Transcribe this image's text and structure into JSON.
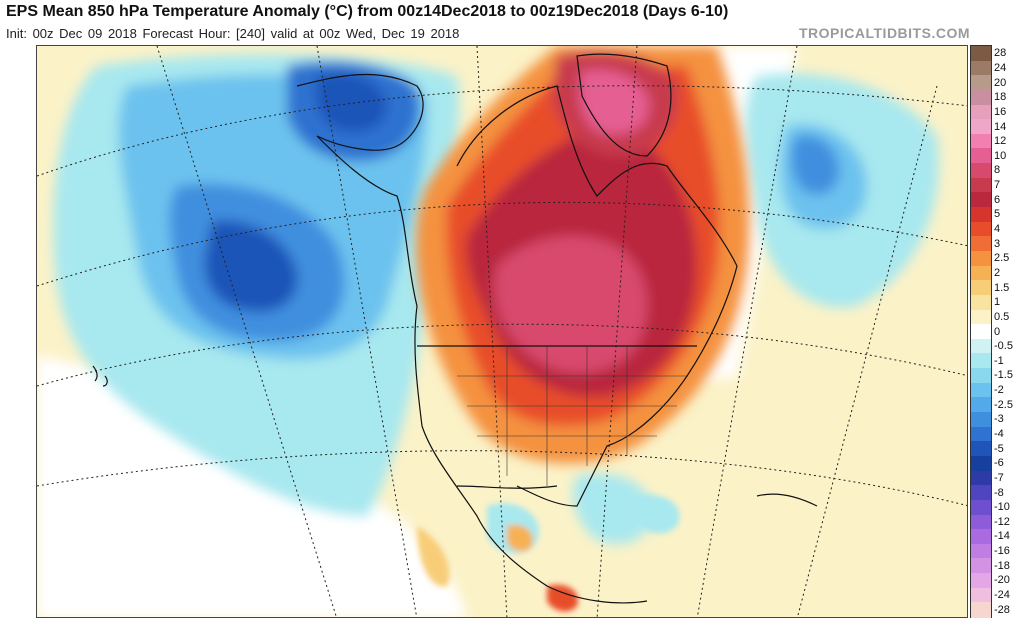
{
  "header": {
    "title": "EPS Mean 850 hPa Temperature Anomaly (°C) from 00z14Dec2018 to 00z19Dec2018 (Days 6-10)",
    "subtitle": "Init: 00z Dec 09 2018   Forecast Hour: [240]   valid at 00z Wed, Dec 19 2018",
    "site": "TROPICALTIDBITS.COM"
  },
  "colorbar": {
    "labels": [
      "28",
      "24",
      "20",
      "18",
      "16",
      "14",
      "12",
      "10",
      "8",
      "7",
      "6",
      "5",
      "4",
      "3",
      "2.5",
      "2",
      "1.5",
      "1",
      "0.5",
      "0",
      "-0.5",
      "-1",
      "-1.5",
      "-2",
      "-2.5",
      "-3",
      "-4",
      "-5",
      "-6",
      "-7",
      "-8",
      "-10",
      "-12",
      "-14",
      "-16",
      "-18",
      "-20",
      "-24",
      "-28"
    ],
    "colors": [
      "#7d5a43",
      "#9c7b66",
      "#b89a8a",
      "#c98fa0",
      "#e6a0bb",
      "#f0a6c8",
      "#f37fb0",
      "#e55f93",
      "#d84a6d",
      "#c83a4e",
      "#b9283c",
      "#d8342e",
      "#e84d2b",
      "#f06e36",
      "#f4923f",
      "#f7b155",
      "#f8cd78",
      "#f9e3a0",
      "#fbf2c8",
      "#ffffff",
      "#d0f2f2",
      "#a8e8ef",
      "#8ad8ee",
      "#6cc2ee",
      "#52aae9",
      "#3f8fdf",
      "#2f72d0",
      "#1f55b8",
      "#163f9e",
      "#2e3aa8",
      "#4f45bf",
      "#6e4fcd",
      "#8e5cd8",
      "#a96bdf",
      "#c07de4",
      "#d492e5",
      "#e3a6e6",
      "#f0bedf",
      "#f7d6d0"
    ]
  },
  "map": {
    "description_colors": {
      "cold_max": "#1f55b8",
      "warm_max": "#b9283c"
    }
  }
}
